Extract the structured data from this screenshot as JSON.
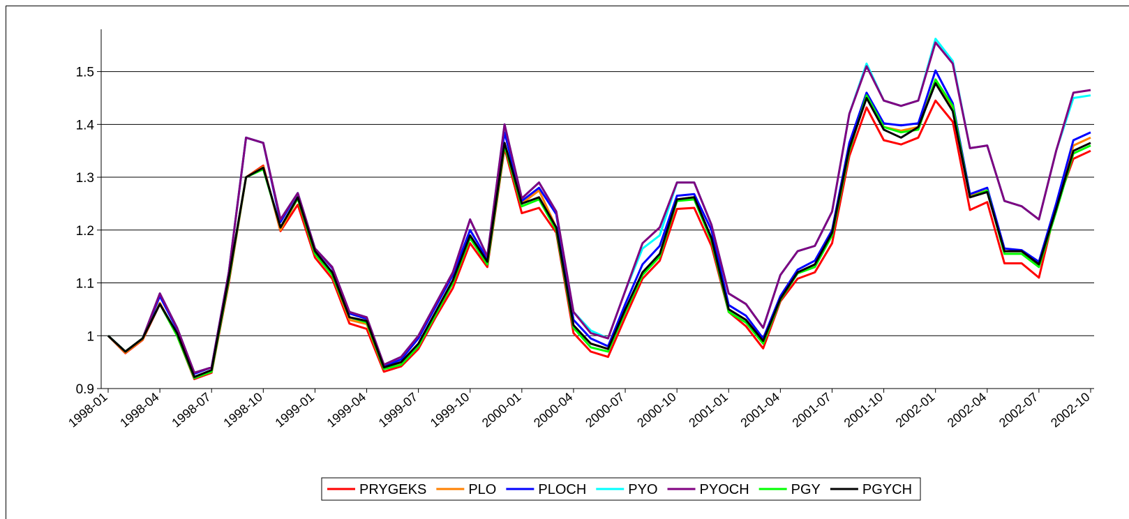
{
  "chart_data": {
    "type": "line",
    "legend": "bottom",
    "grid": true,
    "ylim": [
      0.9,
      1.58
    ],
    "yticks": [
      0.9,
      1,
      1.1,
      1.2,
      1.3,
      1.4,
      1.5
    ],
    "categories": [
      "1998-01",
      null,
      null,
      "1998-04",
      null,
      null,
      "1998-07",
      null,
      null,
      "1998-10",
      null,
      null,
      "1999-01",
      null,
      null,
      "1999-04",
      null,
      null,
      "1999-07",
      null,
      null,
      "1999-10",
      null,
      null,
      "2000-01",
      null,
      null,
      "2000-04",
      null,
      null,
      "2000-07",
      null,
      null,
      "2000-10",
      null,
      null,
      "2001-01",
      null,
      null,
      "2001-04",
      null,
      null,
      "2001-07",
      null,
      null,
      "2001-10",
      null,
      null,
      "2002-01",
      null,
      null,
      "2002-04",
      null,
      null,
      "2002-07",
      null,
      null,
      "2002-10"
    ],
    "series": [
      {
        "name": "PRYGEKS",
        "color": "#ff0000",
        "values": [
          1.0,
          0.967,
          0.992,
          1.06,
          1.0,
          0.918,
          0.93,
          1.1,
          1.3,
          1.322,
          1.198,
          1.248,
          1.148,
          1.108,
          1.023,
          1.013,
          0.932,
          0.942,
          0.975,
          1.035,
          1.09,
          1.175,
          1.13,
          1.355,
          1.232,
          1.242,
          1.195,
          1.005,
          0.97,
          0.96,
          1.035,
          1.108,
          1.142,
          1.24,
          1.242,
          1.17,
          1.045,
          1.018,
          0.976,
          1.065,
          1.108,
          1.12,
          1.175,
          1.34,
          1.432,
          1.37,
          1.362,
          1.375,
          1.445,
          1.405,
          1.238,
          1.253,
          1.137,
          1.137,
          1.11,
          1.245,
          1.335,
          1.35
        ]
      },
      {
        "name": "PLO",
        "color": "#ff8000",
        "values": [
          1.0,
          0.968,
          0.993,
          1.062,
          1.002,
          0.92,
          0.932,
          1.105,
          1.3,
          1.32,
          1.2,
          1.26,
          1.155,
          1.115,
          1.03,
          1.022,
          0.937,
          0.947,
          0.98,
          1.04,
          1.1,
          1.185,
          1.135,
          1.36,
          1.25,
          1.275,
          1.205,
          1.018,
          0.985,
          0.975,
          1.048,
          1.12,
          1.152,
          1.258,
          1.262,
          1.185,
          1.05,
          1.03,
          0.99,
          1.07,
          1.12,
          1.132,
          1.195,
          1.355,
          1.45,
          1.395,
          1.388,
          1.395,
          1.485,
          1.43,
          1.265,
          1.275,
          1.16,
          1.16,
          1.135,
          1.24,
          1.36,
          1.375
        ]
      },
      {
        "name": "PLOCH",
        "color": "#0000ff",
        "values": [
          1.0,
          0.97,
          0.995,
          1.075,
          1.012,
          0.928,
          0.94,
          1.12,
          1.375,
          1.365,
          1.215,
          1.27,
          1.165,
          1.128,
          1.042,
          1.032,
          0.942,
          0.955,
          0.995,
          1.055,
          1.115,
          1.2,
          1.145,
          1.385,
          1.255,
          1.28,
          1.23,
          1.03,
          0.995,
          0.98,
          1.06,
          1.135,
          1.17,
          1.265,
          1.268,
          1.2,
          1.058,
          1.038,
          0.995,
          1.075,
          1.125,
          1.142,
          1.2,
          1.365,
          1.46,
          1.402,
          1.398,
          1.402,
          1.502,
          1.44,
          1.268,
          1.28,
          1.165,
          1.162,
          1.14,
          1.25,
          1.37,
          1.385
        ]
      },
      {
        "name": "PYO",
        "color": "#00ffff",
        "values": [
          1.0,
          0.97,
          0.995,
          1.08,
          1.015,
          0.93,
          0.94,
          1.12,
          1.375,
          1.365,
          1.22,
          1.27,
          1.165,
          1.13,
          1.045,
          1.035,
          0.945,
          0.96,
          1.0,
          1.06,
          1.12,
          1.22,
          1.15,
          1.4,
          1.26,
          1.29,
          1.235,
          1.045,
          1.01,
          0.995,
          1.085,
          1.165,
          1.19,
          1.29,
          1.29,
          1.21,
          1.08,
          1.06,
          1.015,
          1.115,
          1.16,
          1.17,
          1.235,
          1.42,
          1.515,
          1.445,
          1.435,
          1.445,
          1.562,
          1.52,
          1.355,
          1.36,
          1.255,
          1.245,
          1.22,
          1.35,
          1.45,
          1.455
        ]
      },
      {
        "name": "PYOCH",
        "color": "#800080",
        "values": [
          1.0,
          0.97,
          0.995,
          1.08,
          1.015,
          0.93,
          0.94,
          1.12,
          1.375,
          1.365,
          1.22,
          1.27,
          1.165,
          1.13,
          1.045,
          1.035,
          0.945,
          0.96,
          1.0,
          1.06,
          1.12,
          1.22,
          1.15,
          1.4,
          1.26,
          1.29,
          1.235,
          1.045,
          1.005,
          0.995,
          1.085,
          1.175,
          1.205,
          1.29,
          1.29,
          1.21,
          1.08,
          1.06,
          1.015,
          1.115,
          1.16,
          1.17,
          1.235,
          1.42,
          1.51,
          1.445,
          1.435,
          1.445,
          1.555,
          1.515,
          1.355,
          1.36,
          1.255,
          1.245,
          1.22,
          1.35,
          1.46,
          1.465
        ]
      },
      {
        "name": "PGY",
        "color": "#00ff00",
        "values": [
          1.0,
          0.97,
          0.995,
          1.06,
          1.0,
          0.92,
          0.932,
          1.105,
          1.3,
          1.315,
          1.205,
          1.26,
          1.155,
          1.115,
          1.035,
          1.025,
          0.937,
          0.945,
          0.98,
          1.04,
          1.1,
          1.185,
          1.135,
          1.36,
          1.245,
          1.258,
          1.2,
          1.015,
          0.978,
          0.97,
          1.045,
          1.115,
          1.15,
          1.255,
          1.258,
          1.18,
          1.045,
          1.025,
          0.985,
          1.068,
          1.118,
          1.13,
          1.19,
          1.35,
          1.455,
          1.395,
          1.385,
          1.39,
          1.485,
          1.435,
          1.262,
          1.275,
          1.155,
          1.155,
          1.13,
          1.235,
          1.345,
          1.36
        ]
      },
      {
        "name": "PGYCH",
        "color": "#000000",
        "values": [
          1.0,
          0.97,
          0.995,
          1.06,
          1.005,
          0.922,
          0.935,
          1.11,
          1.3,
          1.318,
          1.205,
          1.262,
          1.16,
          1.12,
          1.035,
          1.028,
          0.94,
          0.95,
          0.985,
          1.045,
          1.105,
          1.19,
          1.14,
          1.365,
          1.25,
          1.262,
          1.205,
          1.02,
          0.985,
          0.975,
          1.05,
          1.12,
          1.155,
          1.258,
          1.262,
          1.185,
          1.05,
          1.03,
          0.99,
          1.07,
          1.12,
          1.135,
          1.195,
          1.355,
          1.45,
          1.39,
          1.375,
          1.395,
          1.478,
          1.425,
          1.262,
          1.272,
          1.16,
          1.16,
          1.135,
          1.24,
          1.35,
          1.365
        ]
      }
    ]
  }
}
